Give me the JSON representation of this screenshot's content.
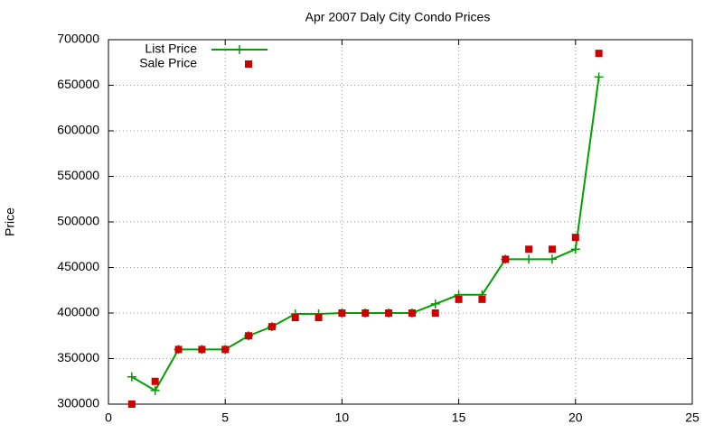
{
  "chart_data": {
    "type": "line",
    "title": "Apr 2007 Daly City Condo Prices",
    "y_label": "Price",
    "x": [
      1,
      2,
      3,
      4,
      5,
      6,
      7,
      8,
      9,
      10,
      11,
      12,
      13,
      14,
      15,
      16,
      17,
      18,
      19,
      20,
      21
    ],
    "series": [
      {
        "name": "List Price",
        "color": "#00a000",
        "style": "linespoints",
        "values": [
          330000,
          315000,
          360000,
          360000,
          360000,
          375000,
          385000,
          399000,
          399000,
          400000,
          400000,
          400000,
          400000,
          410000,
          420000,
          420000,
          459000,
          459000,
          459000,
          470000,
          659000
        ]
      },
      {
        "name": "Sale Price",
        "color": "#cc0000",
        "style": "points",
        "values": [
          300000,
          325000,
          360000,
          360000,
          360000,
          375000,
          385000,
          395000,
          395000,
          400000,
          400000,
          400000,
          400000,
          400000,
          415000,
          415000,
          459000,
          470000,
          470000,
          483000,
          685000
        ]
      }
    ],
    "xlim": [
      0,
      25
    ],
    "xticks": [
      0,
      5,
      10,
      15,
      20,
      25
    ],
    "ylim": [
      300000,
      700000
    ],
    "yticks": [
      300000,
      350000,
      400000,
      450000,
      500000,
      550000,
      600000,
      650000,
      700000
    ],
    "grid": true,
    "legend": "top-left"
  }
}
